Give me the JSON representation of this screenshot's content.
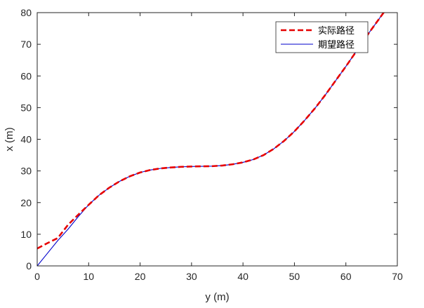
{
  "chart_data": {
    "type": "line",
    "title": "",
    "xlabel": "y (m)",
    "ylabel": "x (m)",
    "xlim": [
      0,
      70
    ],
    "ylim": [
      0,
      80
    ],
    "xticks": [
      0,
      10,
      20,
      30,
      40,
      50,
      60,
      70
    ],
    "yticks": [
      0,
      10,
      20,
      30,
      40,
      50,
      60,
      70,
      80
    ],
    "grid": false,
    "legend_position": "top-right",
    "series": [
      {
        "name": "实际路径",
        "color": "#e60000",
        "style": "dashed",
        "points": [
          [
            0,
            5.5
          ],
          [
            2,
            7.2
          ],
          [
            4,
            8.8
          ],
          [
            6,
            13
          ],
          [
            8,
            16.2
          ],
          [
            10,
            19.3
          ],
          [
            12,
            22.3
          ],
          [
            14,
            24.7
          ],
          [
            16,
            26.7
          ],
          [
            18,
            28.3
          ],
          [
            20,
            29.5
          ],
          [
            22,
            30.3
          ],
          [
            24,
            30.8
          ],
          [
            26,
            31.1
          ],
          [
            28,
            31.3
          ],
          [
            30,
            31.4
          ],
          [
            32,
            31.45
          ],
          [
            34,
            31.5
          ],
          [
            36,
            31.7
          ],
          [
            38,
            32.1
          ],
          [
            40,
            32.7
          ],
          [
            42,
            33.6
          ],
          [
            44,
            35
          ],
          [
            46,
            37
          ],
          [
            48,
            39.5
          ],
          [
            50,
            42.5
          ],
          [
            52,
            46
          ],
          [
            54,
            49.8
          ],
          [
            56,
            54
          ],
          [
            58,
            58.5
          ],
          [
            60,
            63
          ],
          [
            62,
            67.7
          ],
          [
            64,
            72.5
          ],
          [
            66,
            77
          ],
          [
            68,
            81.5
          ],
          [
            70,
            86
          ]
        ]
      },
      {
        "name": "期望路径",
        "color": "#0000cc",
        "style": "solid",
        "points": [
          [
            0,
            0
          ],
          [
            2,
            4
          ],
          [
            4,
            8
          ],
          [
            6,
            11.6
          ],
          [
            8,
            15.6
          ],
          [
            10,
            19.3
          ],
          [
            12,
            22.3
          ],
          [
            14,
            24.7
          ],
          [
            16,
            26.7
          ],
          [
            18,
            28.3
          ],
          [
            20,
            29.5
          ],
          [
            22,
            30.3
          ],
          [
            24,
            30.8
          ],
          [
            26,
            31.1
          ],
          [
            28,
            31.3
          ],
          [
            30,
            31.4
          ],
          [
            32,
            31.45
          ],
          [
            34,
            31.5
          ],
          [
            36,
            31.7
          ],
          [
            38,
            32.1
          ],
          [
            40,
            32.7
          ],
          [
            42,
            33.6
          ],
          [
            44,
            35
          ],
          [
            46,
            37
          ],
          [
            48,
            39.5
          ],
          [
            50,
            42.5
          ],
          [
            52,
            46
          ],
          [
            54,
            49.8
          ],
          [
            56,
            54
          ],
          [
            58,
            58.5
          ],
          [
            60,
            63
          ],
          [
            62,
            67.7
          ],
          [
            64,
            72.5
          ],
          [
            66,
            77
          ],
          [
            68,
            81.5
          ],
          [
            70,
            86
          ]
        ]
      }
    ]
  }
}
